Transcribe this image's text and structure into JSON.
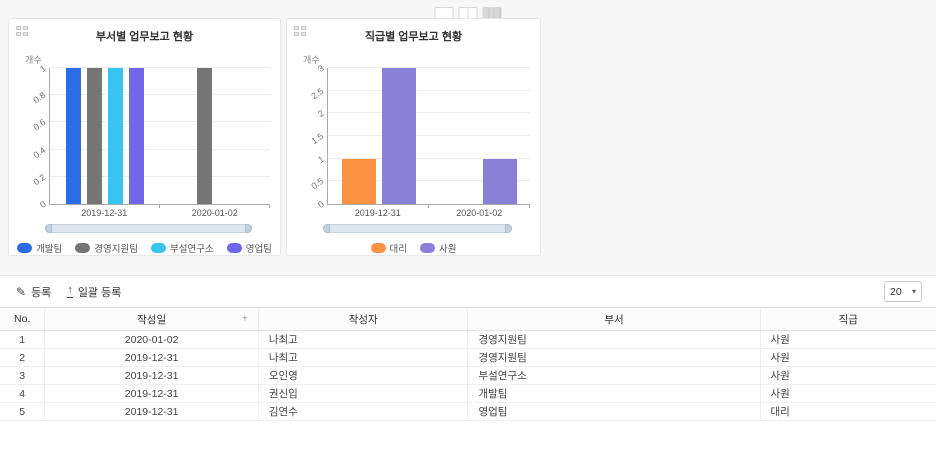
{
  "layout_toggle": {
    "options": [
      "single-column",
      "two-column",
      "three-column"
    ],
    "selected_index": 2
  },
  "chart_data": [
    {
      "type": "bar",
      "title": "부서별 업무보고 현황",
      "ylabel": "개수",
      "categories": [
        "2019-12-31",
        "2020-01-02"
      ],
      "series": [
        {
          "name": "개발팀",
          "color": "#2c6ce6",
          "values": [
            1,
            null
          ]
        },
        {
          "name": "경영지원팀",
          "color": "#757575",
          "values": [
            1,
            1
          ]
        },
        {
          "name": "부설연구소",
          "color": "#38c3f1",
          "values": [
            1,
            null
          ]
        },
        {
          "name": "영업팀",
          "color": "#6f66e8",
          "values": [
            1,
            null
          ]
        }
      ],
      "ylim": [
        0,
        1
      ],
      "yticks": [
        0,
        0.2,
        0.4,
        0.6,
        0.8,
        1
      ],
      "grid": true,
      "legend_position": "bottom"
    },
    {
      "type": "bar",
      "title": "직급별 업무보고 현황",
      "ylabel": "개수",
      "categories": [
        "2019-12-31",
        "2020-01-02"
      ],
      "series": [
        {
          "name": "대리",
          "color": "#fb9143",
          "values": [
            1,
            null
          ]
        },
        {
          "name": "사원",
          "color": "#8b80d8",
          "values": [
            3,
            1
          ]
        }
      ],
      "ylim": [
        0,
        3
      ],
      "yticks": [
        0,
        0.5,
        1,
        1.5,
        2,
        2.5,
        3
      ],
      "grid": true,
      "legend_position": "bottom"
    }
  ],
  "toolbar": {
    "register_label": "등록",
    "bulk_register_label": "일괄 등록",
    "page_size": "20"
  },
  "table": {
    "columns": [
      "No.",
      "작성일",
      "작성자",
      "부서",
      "직급"
    ],
    "sort_column_index": 1,
    "sort_indicator": "+",
    "rows": [
      [
        "1",
        "2020-01-02",
        "나최고",
        "경영지원팀",
        "사원"
      ],
      [
        "2",
        "2019-12-31",
        "나최고",
        "경영지원팀",
        "사원"
      ],
      [
        "3",
        "2019-12-31",
        "오인영",
        "부설연구소",
        "사원"
      ],
      [
        "4",
        "2019-12-31",
        "권신입",
        "개발팀",
        "사원"
      ],
      [
        "5",
        "2019-12-31",
        "김연수",
        "영업팀",
        "대리"
      ]
    ]
  }
}
